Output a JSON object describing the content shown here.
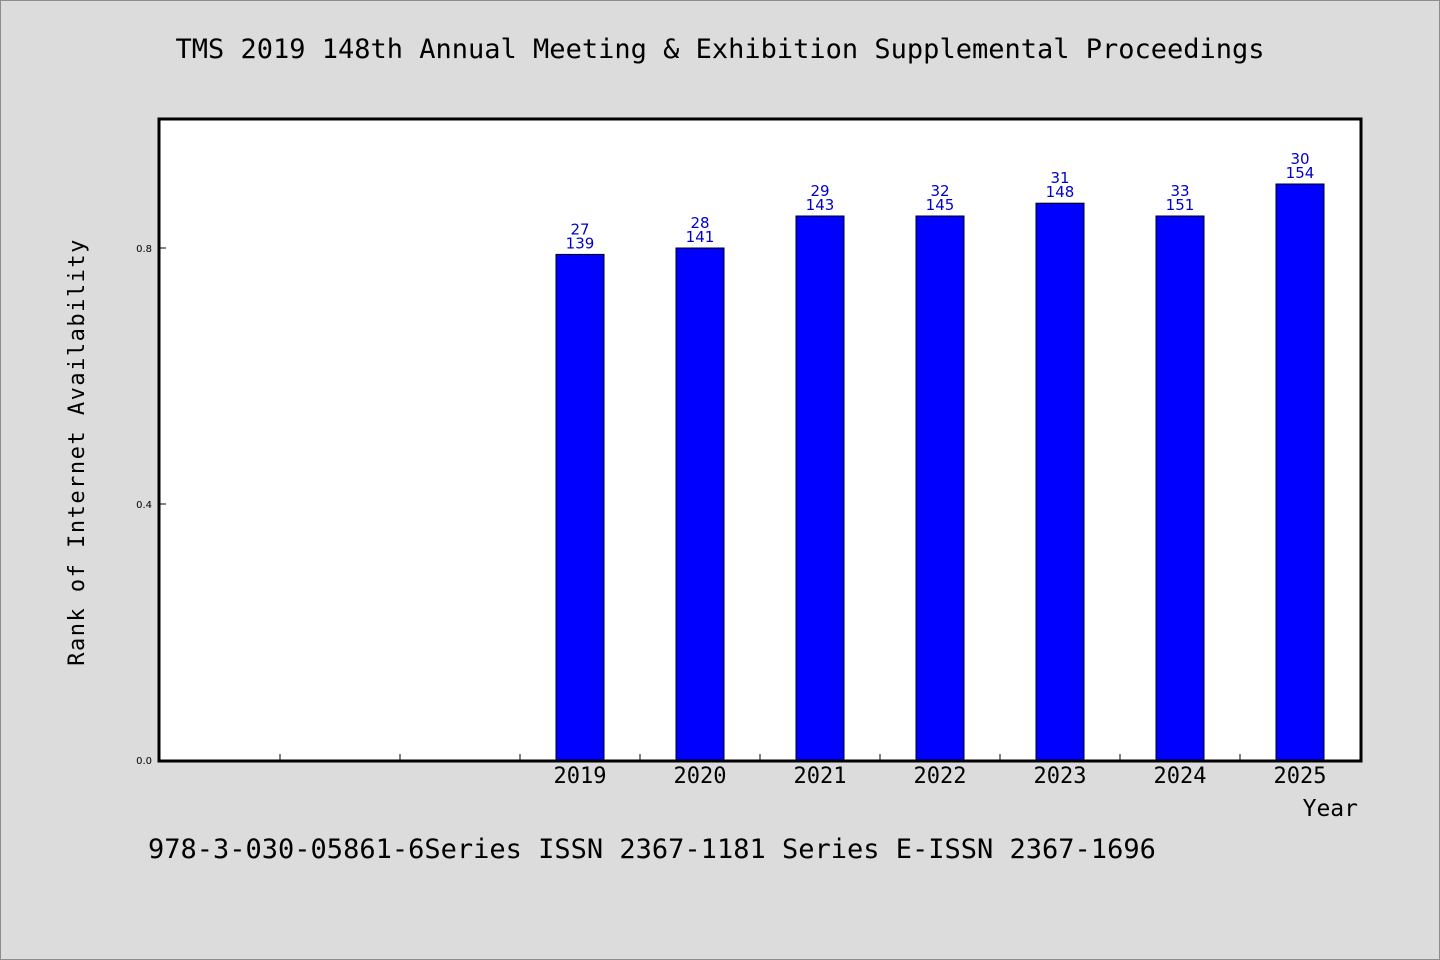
{
  "chart_data": {
    "type": "bar",
    "title": "TMS 2019 148th Annual Meeting & Exhibition Supplemental Proceedings",
    "xlabel": "Year",
    "ylabel": "Rank of Internet Availability",
    "categories": [
      "",
      "",
      "",
      "2019",
      "2020",
      "2021",
      "2022",
      "2023",
      "2024",
      "2025"
    ],
    "values": [
      null,
      null,
      null,
      0.79,
      0.8,
      0.85,
      0.85,
      0.87,
      0.85,
      0.9
    ],
    "bar_labels_top": [
      "",
      "",
      "",
      "27",
      "28",
      "29",
      "32",
      "31",
      "33",
      "30"
    ],
    "bar_labels_bottom": [
      "",
      "",
      "",
      "139",
      "141",
      "143",
      "145",
      "148",
      "151",
      "154"
    ],
    "yticks": [
      "0.0",
      "0.4",
      "0.8"
    ],
    "ylim": [
      0,
      1.0
    ],
    "grid": false,
    "colors": {
      "bar": "#0000ff",
      "bar_label": "#0000cc",
      "plot_bg": "#ffffff",
      "page_bg": "#dcdcdc"
    }
  },
  "footer": {
    "note": "978-3-030-05861-6Series ISSN 2367-1181 Series E-ISSN 2367-1696"
  }
}
